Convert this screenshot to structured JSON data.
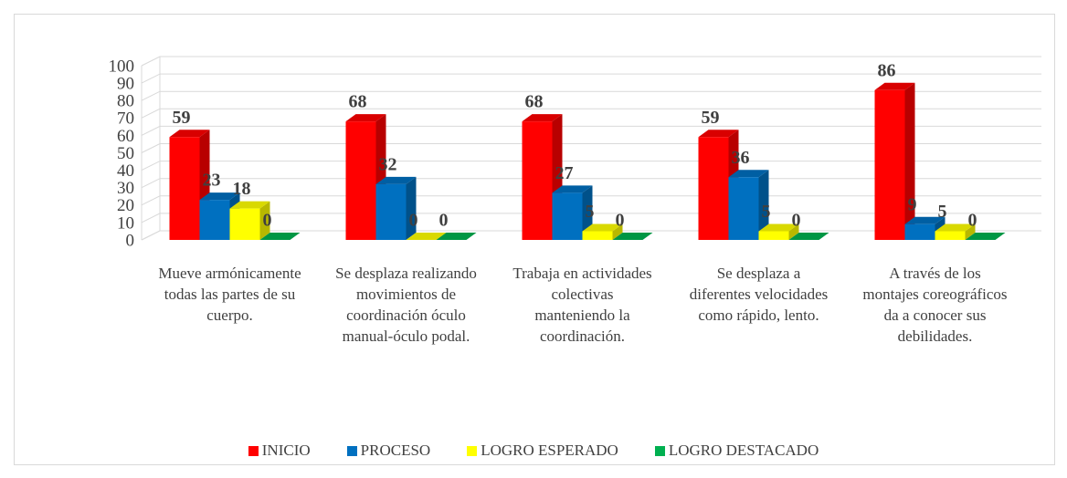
{
  "chart_data": {
    "type": "bar3d",
    "categories": [
      "Mueve armónicamente todas las partes de su cuerpo.",
      "Se desplaza realizando movimientos de coordinación óculo manual-óculo podal.",
      "Trabaja en actividades colectivas manteniendo la coordinación.",
      "Se desplaza a diferentes velocidades como rápido, lento.",
      "A través de los montajes coreográficos da a conocer sus debilidades."
    ],
    "series": [
      {
        "name": "INICIO",
        "color": "#ff0000",
        "values": [
          59,
          68,
          68,
          59,
          86
        ]
      },
      {
        "name": "PROCESO",
        "color": "#0070c0",
        "values": [
          23,
          32,
          27,
          36,
          9
        ]
      },
      {
        "name": "LOGRO ESPERADO",
        "color": "#ffff00",
        "values": [
          18,
          0,
          5,
          5,
          5
        ]
      },
      {
        "name": "LOGRO DESTACADO",
        "color": "#00b050",
        "values": [
          0,
          0,
          0,
          0,
          0
        ]
      }
    ],
    "ylim": [
      0,
      100
    ],
    "yticks": [
      0,
      10,
      20,
      30,
      40,
      50,
      60,
      70,
      80,
      90,
      100
    ],
    "grid": true,
    "legend": "bottom"
  }
}
